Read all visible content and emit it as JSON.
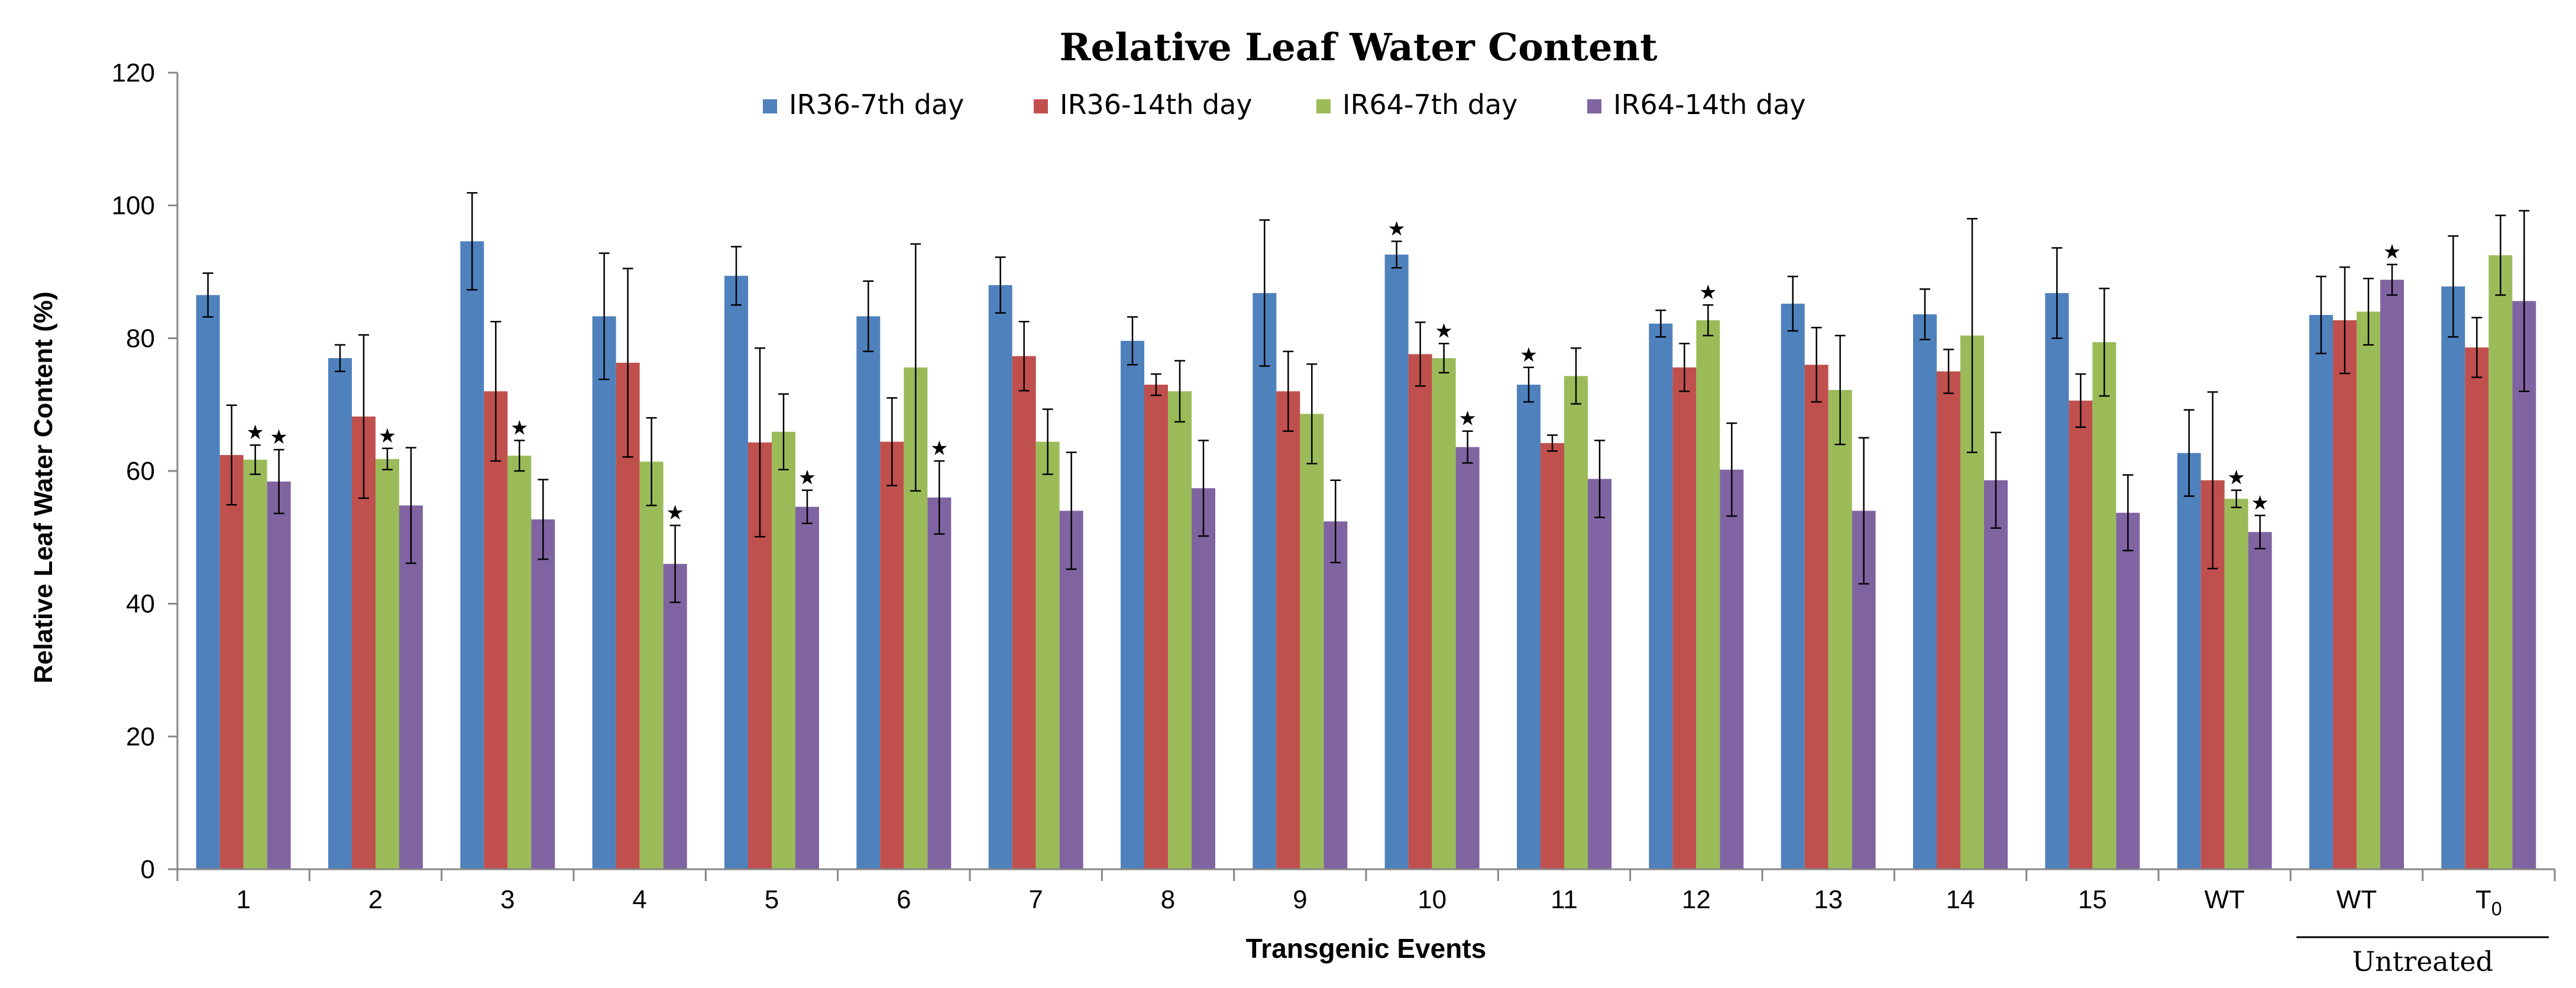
{
  "chart_data": {
    "type": "bar",
    "title": "Relative Leaf Water Content",
    "xlabel": "Transgenic  Events",
    "ylabel": "Relative Leaf Water Content (%)",
    "ylim": [
      0,
      120
    ],
    "yticks": [
      0,
      20,
      40,
      60,
      80,
      100,
      120
    ],
    "grid": false,
    "legend_position": "top-center",
    "categories": [
      "1",
      "2",
      "3",
      "4",
      "5",
      "6",
      "7",
      "8",
      "9",
      "10",
      "11",
      "12",
      "13",
      "14",
      "15",
      "WT",
      "WT",
      "T"
    ],
    "category_subscripts": [
      "",
      "",
      "",
      "",
      "",
      "",
      "",
      "",
      "",
      "",
      "",
      "",
      "",
      "",
      "",
      "",
      "",
      "0"
    ],
    "group_label": {
      "text": "Untreated",
      "categories": [
        16,
        17
      ]
    },
    "series": [
      {
        "name": "IR36-7th day",
        "color": "#4F81BD",
        "values": [
          86.5,
          77,
          94.6,
          83.3,
          89.4,
          83.3,
          88,
          79.6,
          86.8,
          92.6,
          73,
          82.2,
          85.2,
          83.6,
          86.8,
          62.7,
          83.5,
          87.8
        ],
        "errors": [
          3.3,
          2.0,
          7.3,
          9.5,
          4.4,
          5.3,
          4.2,
          3.6,
          11.0,
          2.0,
          2.6,
          2.0,
          4.1,
          3.8,
          6.8,
          6.5,
          5.8,
          7.6
        ],
        "significant": [
          false,
          false,
          false,
          false,
          false,
          false,
          false,
          false,
          false,
          true,
          true,
          false,
          false,
          false,
          false,
          false,
          false,
          false
        ]
      },
      {
        "name": "IR36-14th day",
        "color": "#C0504D",
        "values": [
          62.4,
          68.2,
          72,
          76.3,
          64.3,
          64.4,
          77.3,
          73,
          72,
          77.6,
          64.2,
          75.6,
          76,
          75,
          70.6,
          58.6,
          82.7,
          78.6
        ],
        "errors": [
          7.5,
          12.3,
          10.5,
          14.2,
          14.2,
          6.6,
          5.2,
          1.6,
          6.0,
          4.8,
          1.2,
          3.6,
          5.6,
          3.3,
          4.0,
          13.3,
          8.0,
          4.5
        ],
        "significant": [
          false,
          false,
          false,
          false,
          false,
          false,
          false,
          false,
          false,
          false,
          false,
          false,
          false,
          false,
          false,
          false,
          false,
          false
        ]
      },
      {
        "name": "IR64-7th day",
        "color": "#9BBB59",
        "values": [
          61.7,
          61.8,
          62.3,
          61.4,
          65.9,
          75.6,
          64.4,
          72,
          68.6,
          77,
          74.3,
          82.7,
          72.2,
          80.4,
          79.4,
          55.8,
          84,
          92.5
        ],
        "errors": [
          2.2,
          1.6,
          2.3,
          6.6,
          5.7,
          18.6,
          4.9,
          4.6,
          7.5,
          2.2,
          4.2,
          2.3,
          8.2,
          17.6,
          8.1,
          1.3,
          5.0,
          6.0
        ],
        "significant": [
          true,
          true,
          true,
          false,
          false,
          false,
          false,
          false,
          false,
          true,
          false,
          true,
          false,
          false,
          false,
          true,
          false,
          false
        ]
      },
      {
        "name": "IR64-14th day",
        "color": "#8064A2",
        "values": [
          58.4,
          54.8,
          52.7,
          46,
          54.6,
          56,
          54,
          57.4,
          52.4,
          63.6,
          58.8,
          60.2,
          54,
          58.6,
          53.7,
          50.8,
          88.8,
          85.6
        ],
        "errors": [
          4.8,
          8.7,
          6.0,
          5.8,
          2.5,
          5.5,
          8.8,
          7.2,
          6.2,
          2.4,
          5.8,
          7.0,
          11.0,
          7.2,
          5.7,
          2.5,
          2.3,
          13.6
        ],
        "significant": [
          true,
          false,
          false,
          true,
          true,
          true,
          false,
          false,
          false,
          true,
          false,
          false,
          false,
          false,
          false,
          true,
          true,
          false
        ]
      }
    ]
  }
}
